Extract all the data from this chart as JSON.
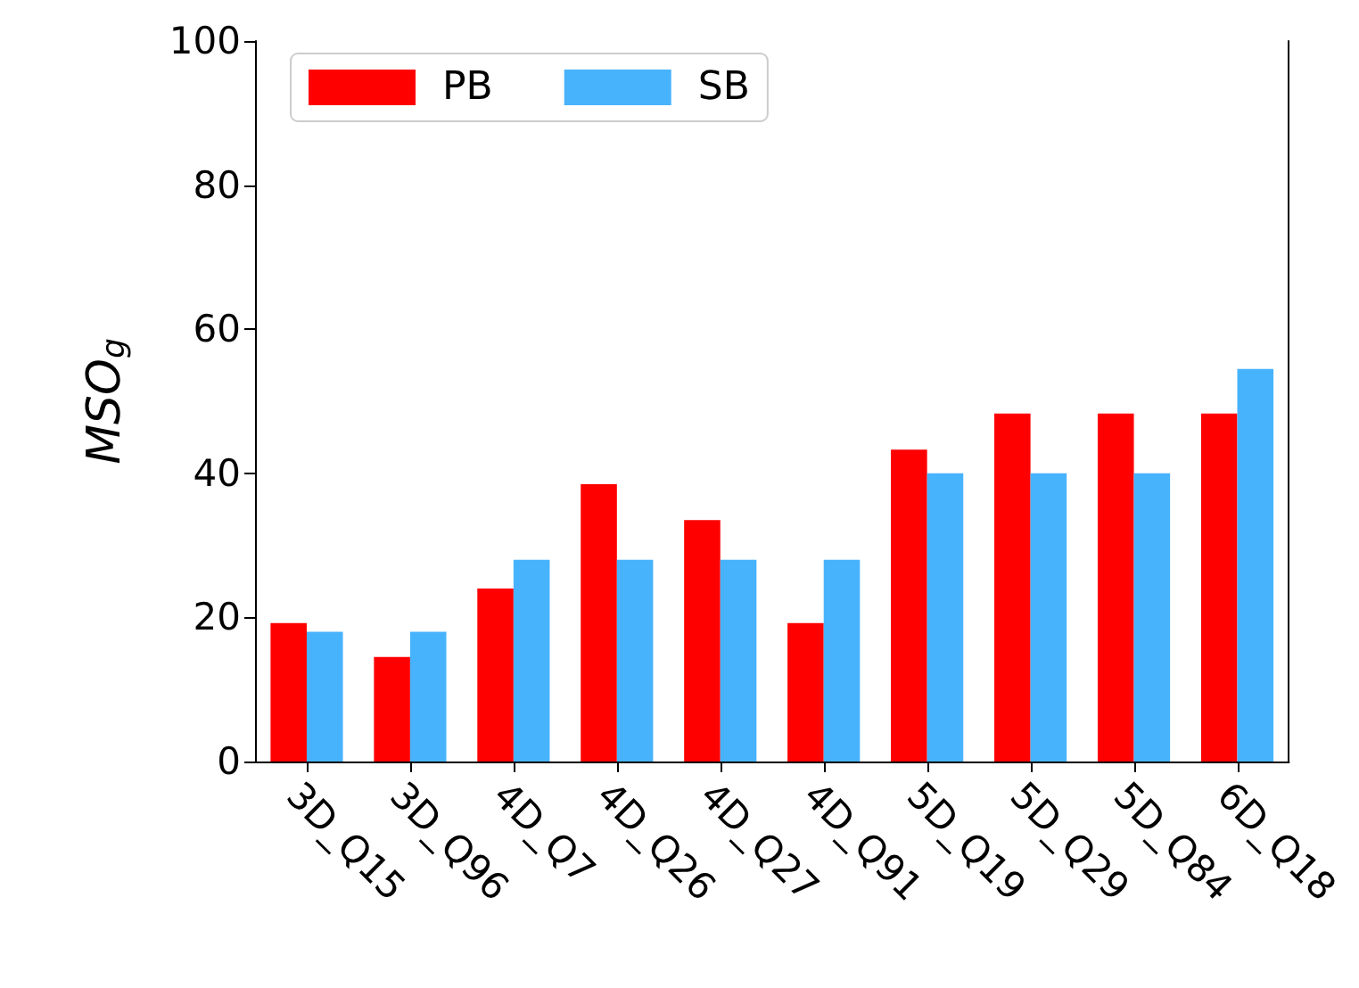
{
  "chart_data": {
    "type": "bar",
    "ylabel": "MSO$_{g}$",
    "categories": [
      "3D_Q15",
      "3D_Q96",
      "4D_Q7",
      "4D_Q26",
      "4D_Q27",
      "4D_Q91",
      "5D_Q19",
      "5D_Q29",
      "5D_Q84",
      "6D_Q18"
    ],
    "series": [
      {
        "name": "PB",
        "color": "#ff0000",
        "values": [
          19.2,
          14.5,
          24,
          38.5,
          33.5,
          19.2,
          43.3,
          48.3,
          48.3,
          48.3
        ]
      },
      {
        "name": "SB",
        "color": "#48b3fd",
        "values": [
          18,
          18,
          28,
          28,
          28,
          28,
          40,
          40,
          40,
          54.5
        ]
      }
    ],
    "ylim": [
      0,
      100
    ],
    "yticks": [
      0,
      20,
      40,
      60,
      80,
      100
    ],
    "grid": false,
    "legend": "top left"
  }
}
